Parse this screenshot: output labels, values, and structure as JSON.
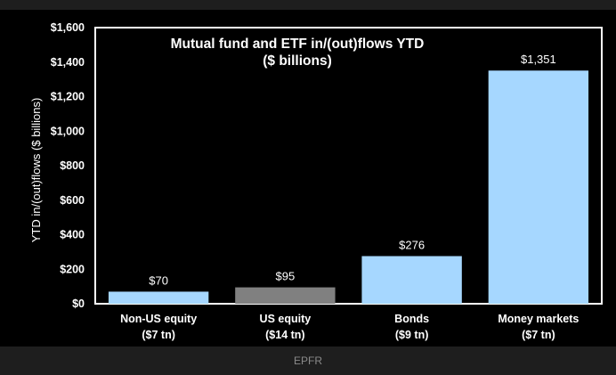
{
  "chart_data": {
    "type": "bar",
    "title": "Mutual fund and ETF in/(out)flows YTD",
    "subtitle": "($ billions)",
    "ylabel": "YTD in/(out)flows ($ billions)",
    "xlabel": "",
    "categories": [
      "Non-US equity",
      "US equity",
      "Bonds",
      "Money markets"
    ],
    "category_sublabels": [
      "($7 tn)",
      "($14 tn)",
      "($9 tn)",
      "($7 tn)"
    ],
    "values": [
      70,
      95,
      276,
      1351
    ],
    "value_labels": [
      "$70",
      "$95",
      "$276",
      "$1,351"
    ],
    "bar_colors": [
      "#a6d7ff",
      "#808080",
      "#a6d7ff",
      "#a6d7ff"
    ],
    "ylim": [
      0,
      1600
    ],
    "yticks": [
      0,
      200,
      400,
      600,
      800,
      1000,
      1200,
      1400,
      1600
    ],
    "ytick_labels": [
      "$0",
      "$200",
      "$400",
      "$600",
      "$800",
      "$1,000",
      "$1,200",
      "$1,400",
      "$1,600"
    ],
    "grid": false,
    "legend": "none"
  },
  "colors": {
    "background": "#000000",
    "frame": "#ffffff",
    "text": "#ffffff"
  },
  "caption": "EPFR"
}
